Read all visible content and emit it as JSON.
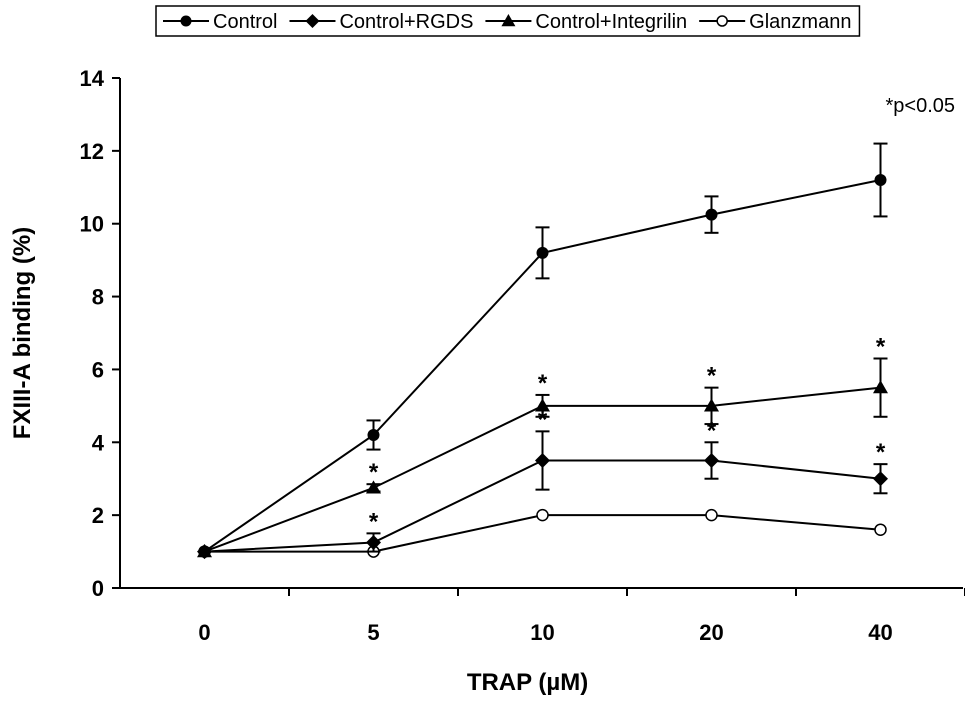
{
  "chart_data": {
    "type": "line",
    "xlabel": "TRAP (µM)",
    "ylabel": "FXIII-A binding (%)",
    "categories": [
      "0",
      "5",
      "10",
      "20",
      "40"
    ],
    "ylim": [
      0,
      14
    ],
    "yticks": [
      0,
      2,
      4,
      6,
      8,
      10,
      12,
      14
    ],
    "grid": false,
    "legend_position": "top",
    "annotation": "*p<0.05",
    "significance_marker": "*",
    "series": [
      {
        "name": "Control",
        "marker": "filled-circle",
        "values": [
          1.0,
          4.2,
          9.2,
          10.25,
          11.2
        ],
        "errors": [
          0.0,
          0.4,
          0.7,
          0.5,
          1.0
        ],
        "significant": [
          false,
          false,
          false,
          false,
          false
        ]
      },
      {
        "name": "Control+RGDS",
        "marker": "filled-diamond",
        "values": [
          1.0,
          1.25,
          3.5,
          3.5,
          3.0
        ],
        "errors": [
          0.0,
          0.25,
          0.8,
          0.5,
          0.4
        ],
        "significant": [
          false,
          true,
          true,
          true,
          true
        ]
      },
      {
        "name": "Control+Integrilin",
        "marker": "filled-triangle",
        "values": [
          1.0,
          2.75,
          5.0,
          5.0,
          5.5
        ],
        "errors": [
          0.0,
          0.1,
          0.3,
          0.5,
          0.8
        ],
        "significant": [
          false,
          true,
          true,
          true,
          true
        ]
      },
      {
        "name": "Glanzmann",
        "marker": "open-circle",
        "values": [
          1.0,
          1.0,
          2.0,
          2.0,
          1.6
        ],
        "errors": [
          0.0,
          0.0,
          0.0,
          0.0,
          0.0
        ],
        "significant": [
          false,
          false,
          false,
          false,
          false
        ]
      }
    ]
  }
}
